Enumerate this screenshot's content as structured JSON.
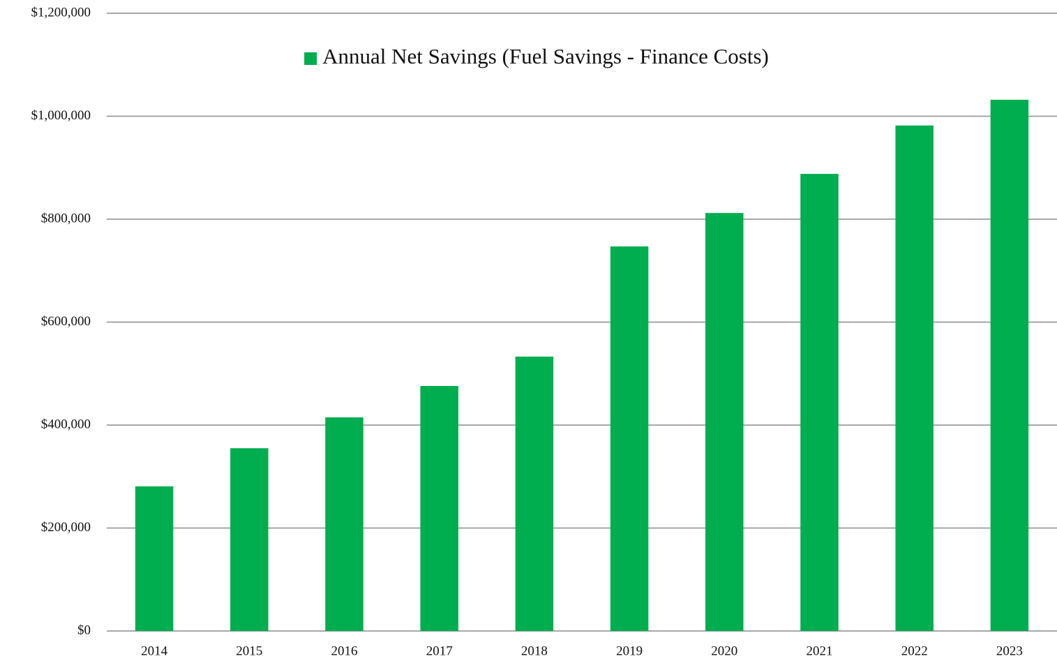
{
  "chart_data": {
    "type": "bar",
    "categories": [
      "2014",
      "2015",
      "2016",
      "2017",
      "2018",
      "2019",
      "2020",
      "2021",
      "2022",
      "2023"
    ],
    "series": [
      {
        "name": "Annual Net Savings (Fuel Savings - Finance Costs)",
        "color": "#00ad4f",
        "values": [
          281000,
          355000,
          415000,
          476000,
          533000,
          747000,
          812000,
          888000,
          982000,
          1032000
        ]
      }
    ],
    "ylim": [
      0,
      1200000
    ],
    "yticks": [
      {
        "value": 0,
        "label": "$0"
      },
      {
        "value": 200000,
        "label": "$200,000"
      },
      {
        "value": 400000,
        "label": "$400,000"
      },
      {
        "value": 600000,
        "label": "$600,000"
      },
      {
        "value": 800000,
        "label": "$800,000"
      },
      {
        "value": 1000000,
        "label": "$1,000,000"
      },
      {
        "value": 1200000,
        "label": "$1,200,000"
      }
    ],
    "grid": true,
    "legend": "top"
  }
}
